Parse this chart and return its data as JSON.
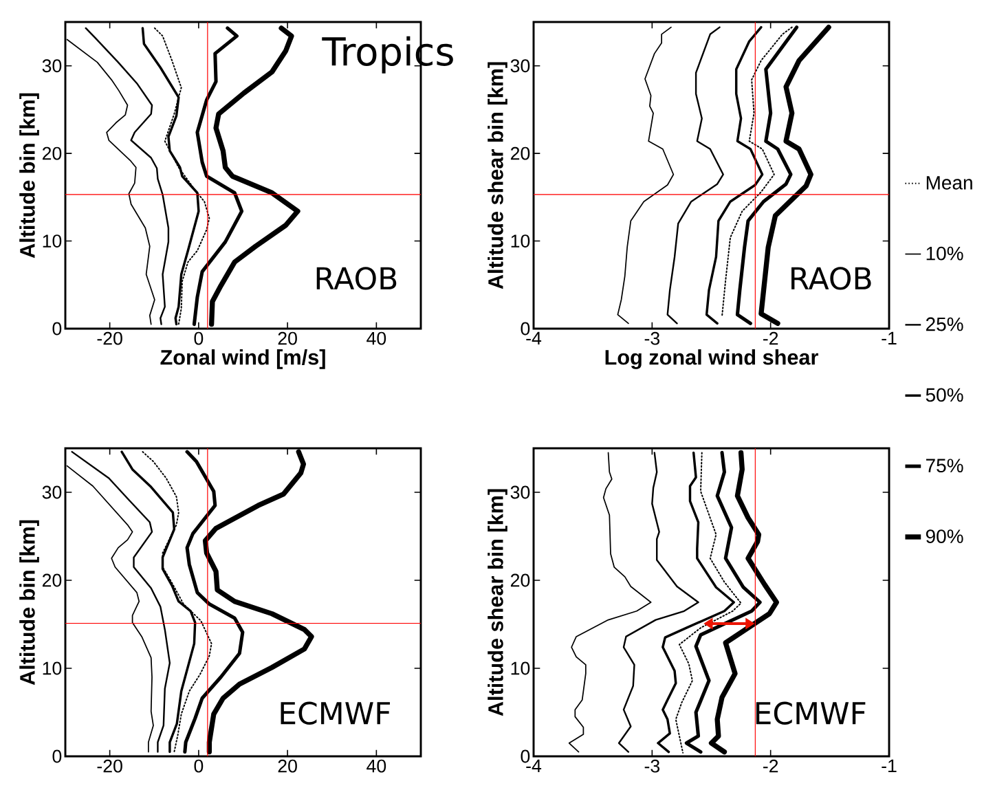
{
  "chart_data": [
    {
      "type": "line",
      "title": "Tropics",
      "xlabel": "Zonal wind [m/s]",
      "ylabel": "Altitude bin [km]",
      "annotations": [
        "RAOB"
      ],
      "xlim": [
        -30,
        50
      ],
      "ylim": [
        0,
        35
      ],
      "xticks": [
        -20,
        0,
        20,
        40
      ],
      "yticks": [
        0,
        10,
        20,
        30
      ],
      "ref_lines": [
        {
          "axis": "x",
          "value": 2,
          "color": "#ff0000"
        },
        {
          "axis": "y",
          "value": 15.3,
          "color": "#ff0000"
        }
      ],
      "series": [
        {
          "color": "#000000",
          "line_style": "dotted",
          "x": [
            -9.9,
            -8.1,
            -6.0,
            -3.9,
            -4.5,
            -5.5,
            -7.6,
            -4.5,
            -0.8,
            1.3,
            2.4,
            1.8,
            -0.3,
            -2.4,
            -3.7,
            -3.9,
            -4.5
          ],
          "values": [
            34.3,
            33.4,
            30.6,
            27.5,
            26.4,
            24.5,
            21.4,
            18.4,
            15.8,
            14.5,
            12.6,
            11.3,
            8.9,
            7.6,
            5.4,
            2.3,
            0.5
          ]
        },
        {
          "color": "#000000",
          "line_style": "solid",
          "x": [
            -29.6,
            -22.8,
            -19.6,
            -18.0,
            -16.0,
            -16.5,
            -18.6,
            -20.7,
            -20.2,
            -15.4,
            -14.1,
            -14.4,
            -15.7,
            -15.2,
            -12.0,
            -11.0,
            -11.8,
            -9.9,
            -11.0,
            -10.7
          ],
          "values": [
            33.0,
            30.4,
            28.4,
            27.2,
            25.5,
            24.4,
            23.5,
            22.4,
            21.5,
            19.2,
            18.4,
            16.6,
            15.4,
            14.2,
            11.5,
            9.4,
            6.2,
            3.3,
            1.5,
            0.5
          ]
        },
        {
          "color": "#000000",
          "line_style": "solid",
          "x": [
            -25.4,
            -23.3,
            -18.1,
            -13.9,
            -10.5,
            -10.7,
            -14.4,
            -15.2,
            -10.7,
            -9.4,
            -9.2,
            -8.1,
            -6.8,
            -6.8,
            -8.1,
            -7.6,
            -8.6,
            -8.4
          ],
          "values": [
            34.3,
            33.2,
            30.4,
            28.0,
            25.5,
            24.5,
            22.4,
            21.5,
            19.5,
            18.3,
            17.1,
            15.3,
            11.5,
            9.9,
            6.2,
            2.5,
            1.2,
            0.5
          ]
        },
        {
          "color": "#000000",
          "line_style": "solid",
          "x": [
            -12.6,
            -12.3,
            -8.6,
            -4.5,
            -5.0,
            -6.8,
            -6.5,
            -4.2,
            -3.7,
            -0.3,
            0,
            -2.4,
            -3.9,
            -4.5,
            -5.2,
            -5.0
          ],
          "values": [
            34.3,
            32.5,
            29.8,
            26.4,
            24.3,
            21.9,
            20.3,
            18.4,
            17.4,
            15.5,
            13.4,
            8.9,
            6.2,
            2.5,
            1.2,
            0.5
          ]
        },
        {
          "color": "#000000",
          "line_style": "solid",
          "x": [
            6.5,
            8.6,
            3.7,
            3.9,
            1.8,
            -0.3,
            0.8,
            1.8,
            8.1,
            9.7,
            6.0,
            0.8,
            -0.3,
            -1.0
          ],
          "values": [
            34.3,
            33.4,
            31.4,
            28.2,
            26.1,
            22.4,
            19.0,
            17.4,
            15.5,
            13.4,
            9.9,
            6.5,
            3.6,
            0.5
          ]
        },
        {
          "color": "#000000",
          "line_style": "solid",
          "x": [
            18.6,
            20.9,
            19.6,
            16.5,
            10.2,
            4.5,
            3.9,
            5.5,
            6.0,
            7.6,
            16.5,
            22.3,
            19.6,
            12.8,
            8.1,
            5.0,
            3.1,
            2.9
          ],
          "values": [
            34.3,
            33.4,
            31.7,
            29.3,
            26.9,
            24.5,
            22.9,
            20.3,
            18.4,
            17.4,
            15.5,
            13.4,
            11.8,
            9.4,
            7.6,
            4.9,
            3.1,
            0.5
          ]
        }
      ]
    },
    {
      "type": "line",
      "xlabel": "Log zonal wind shear",
      "ylabel": "Altitude shear bin [km]",
      "annotations": [
        "RAOB"
      ],
      "xlim": [
        -4,
        -1
      ],
      "ylim": [
        0,
        35
      ],
      "xticks": [
        -4,
        -3,
        -2,
        -1
      ],
      "yticks": [
        0,
        10,
        20,
        30
      ],
      "legend": "right",
      "ref_lines": [
        {
          "axis": "x",
          "value": -2.13,
          "color": "#ff0000"
        },
        {
          "axis": "y",
          "value": 15.3,
          "color": "#ff0000"
        }
      ],
      "series": [
        {
          "name": "Mean",
          "color": "#000000",
          "line_style": "dotted",
          "x": [
            -1.82,
            -1.9,
            -2.08,
            -2.16,
            -2.14,
            -2.18,
            -2.07,
            -1.97,
            -2.08,
            -2.24,
            -2.34,
            -2.38,
            -2.41
          ],
          "values": [
            34.4,
            33.6,
            30.6,
            28.4,
            24.6,
            21.4,
            20.5,
            17.6,
            15.6,
            13.4,
            10.4,
            5.5,
            1.4
          ]
        },
        {
          "name": "10%",
          "color": "#000000",
          "line_style": "solid",
          "x": [
            -2.84,
            -2.92,
            -2.92,
            -2.98,
            -3.06,
            -3.01,
            -3.02,
            -2.99,
            -3.03,
            -2.91,
            -2.82,
            -2.87,
            -3.07,
            -3.18,
            -3.21,
            -3.23,
            -3.26,
            -3.29,
            -3.2
          ],
          "values": [
            34.4,
            33.6,
            32.6,
            31.4,
            28.5,
            26.6,
            25.4,
            24.6,
            21.4,
            20.5,
            17.6,
            16.4,
            14.5,
            12.3,
            9.3,
            6.0,
            3.3,
            1.6,
            0.6
          ]
        },
        {
          "name": "25%",
          "color": "#000000",
          "line_style": "solid",
          "x": [
            -2.43,
            -2.51,
            -2.63,
            -2.63,
            -2.58,
            -2.62,
            -2.51,
            -2.4,
            -2.45,
            -2.67,
            -2.78,
            -2.81,
            -2.85,
            -2.87,
            -2.79
          ],
          "values": [
            34.4,
            33.6,
            29.2,
            26.8,
            24.0,
            21.4,
            20.5,
            17.6,
            16.5,
            14.5,
            12.0,
            8.2,
            4.4,
            1.6,
            0.6
          ]
        },
        {
          "name": "50%",
          "color": "#000000",
          "line_style": "solid",
          "x": [
            -2.08,
            -2.18,
            -2.29,
            -2.29,
            -2.25,
            -2.28,
            -2.17,
            -2.07,
            -2.13,
            -2.34,
            -2.44,
            -2.46,
            -2.52,
            -2.54,
            -2.45
          ],
          "values": [
            34.4,
            32.8,
            29.6,
            26.8,
            24.0,
            21.4,
            20.5,
            17.6,
            16.4,
            14.5,
            12.3,
            8.2,
            4.4,
            1.6,
            0.6
          ]
        },
        {
          "name": "75%",
          "color": "#000000",
          "line_style": "solid",
          "x": [
            -1.78,
            -2.04,
            -2.0,
            -2.04,
            -1.94,
            -1.83,
            -1.87,
            -2.06,
            -2.19,
            -2.22,
            -2.26,
            -2.28,
            -2.17
          ],
          "values": [
            34.4,
            29.6,
            24.6,
            21.4,
            20.5,
            17.6,
            16.5,
            14.5,
            12.3,
            9.3,
            4.4,
            1.6,
            0.6
          ]
        },
        {
          "name": "90%",
          "color": "#000000",
          "line_style": "solid",
          "x": [
            -1.51,
            -1.76,
            -1.87,
            -1.82,
            -1.87,
            -1.76,
            -1.66,
            -1.7,
            -1.8,
            -1.96,
            -2.02,
            -2.08,
            -1.94
          ],
          "values": [
            34.4,
            30.6,
            27.6,
            24.6,
            21.4,
            20.5,
            17.6,
            16.3,
            15.0,
            12.9,
            9.3,
            1.7,
            0.6
          ]
        }
      ]
    },
    {
      "type": "line",
      "ylabel": "Altitude bin [km]",
      "annotations": [
        "ECMWF"
      ],
      "xlim": [
        -30,
        50
      ],
      "ylim": [
        0,
        35
      ],
      "xticks": [
        -20,
        0,
        20,
        40
      ],
      "yticks": [
        0,
        10,
        20,
        30
      ],
      "ref_lines": [
        {
          "axis": "x",
          "value": 2,
          "color": "#ff0000"
        },
        {
          "axis": "y",
          "value": 15.1,
          "color": "#ff0000"
        }
      ],
      "series": [
        {
          "color": "#000000",
          "line_style": "dotted",
          "x": [
            -12.6,
            -10.2,
            -7.3,
            -5.0,
            -4.5,
            -5.0,
            -8.1,
            -8.1,
            -6.0,
            -3.4,
            0.5,
            2.9,
            2.4,
            0.3,
            -2.1,
            -3.9,
            -4.7,
            -5.5
          ],
          "values": [
            34.6,
            33.5,
            31.6,
            29.5,
            27.7,
            26.3,
            23.1,
            21.5,
            19.7,
            17.3,
            15.4,
            12.8,
            11.4,
            9.3,
            7.4,
            4.8,
            2.4,
            0.5
          ]
        },
        {
          "color": "#000000",
          "line_style": "solid",
          "x": [
            -29.6,
            -23.8,
            -16.0,
            -14.9,
            -16.0,
            -18.1,
            -19.6,
            -18.8,
            -13.9,
            -13.4,
            -14.9,
            -14.9,
            -12.8,
            -10.7,
            -10.5,
            -10.7,
            -10.2,
            -11.3,
            -11.3
          ],
          "values": [
            33.0,
            30.7,
            26.3,
            25.5,
            24.6,
            23.7,
            22.5,
            21.5,
            18.6,
            17.6,
            16.0,
            15.2,
            13.6,
            11.2,
            9.0,
            5.1,
            3.5,
            1.6,
            0.5
          ]
        },
        {
          "color": "#000000",
          "line_style": "solid",
          "x": [
            -28.5,
            -20.2,
            -16.0,
            -11.0,
            -10.5,
            -14.6,
            -14.6,
            -10.7,
            -8.6,
            -7.6,
            -6.5,
            -7.6,
            -7.9,
            -9.2,
            -9.2
          ],
          "values": [
            34.6,
            31.6,
            29.3,
            26.6,
            25.5,
            22.6,
            21.5,
            19.1,
            17.0,
            14.4,
            10.6,
            7.7,
            3.5,
            1.6,
            0.5
          ]
        },
        {
          "color": "#000000",
          "line_style": "solid",
          "x": [
            -17.3,
            -14.9,
            -10.7,
            -5.8,
            -5.5,
            -8.1,
            -8.1,
            -6.0,
            -4.5,
            -1.8,
            -0.8,
            -1.0,
            -3.9,
            -4.9,
            -6.5,
            -6.5
          ],
          "values": [
            34.6,
            32.6,
            30.6,
            27.7,
            25.8,
            22.6,
            21.3,
            19.4,
            17.6,
            16.5,
            15.2,
            12.8,
            7.4,
            3.7,
            1.6,
            0.5
          ]
        },
        {
          "color": "#000000",
          "line_style": "solid",
          "x": [
            -2.6,
            -0.5,
            3.4,
            3.7,
            -1.3,
            -2.6,
            -2.1,
            -0.3,
            2.4,
            8.1,
            9.9,
            9.2,
            5.0,
            0.8,
            -0.8,
            -2.9,
            -3.1
          ],
          "values": [
            34.6,
            33.5,
            30.1,
            28.5,
            25.3,
            23.7,
            21.8,
            18.6,
            17.3,
            15.7,
            14.1,
            11.7,
            9.0,
            6.6,
            4.3,
            1.6,
            0.5
          ]
        },
        {
          "color": "#000000",
          "line_style": "solid",
          "x": [
            22.5,
            23.6,
            23.0,
            19.1,
            13.4,
            3.9,
            1.5,
            1.8,
            3.9,
            4.2,
            8.1,
            16.5,
            23.8,
            25.4,
            23.8,
            16.5,
            9.2,
            5.5,
            3.4,
            2.4,
            2.4
          ],
          "values": [
            34.6,
            33.2,
            32.2,
            29.8,
            28.5,
            25.9,
            24.5,
            23.1,
            21.0,
            18.9,
            17.6,
            16.2,
            14.4,
            13.6,
            12.2,
            10.1,
            8.2,
            6.6,
            4.8,
            1.6,
            0.5
          ]
        }
      ]
    },
    {
      "type": "line",
      "ylabel": "Altitude shear bin [km]",
      "annotations": [
        "ECMWF"
      ],
      "xlim": [
        -4,
        -1
      ],
      "ylim": [
        0,
        35
      ],
      "xticks": [
        -4,
        -3,
        -2,
        -1
      ],
      "yticks": [
        0,
        10,
        20,
        30
      ],
      "ref_lines": [
        {
          "axis": "x",
          "value": -2.13,
          "color": "#ff0000"
        }
      ],
      "series": [
        {
          "color": "#000000",
          "line_style": "dotted",
          "x": [
            -2.58,
            -2.59,
            -2.46,
            -2.51,
            -2.39,
            -2.25,
            -2.32,
            -2.59,
            -2.77,
            -2.69,
            -2.66,
            -2.75,
            -2.8,
            -2.74
          ],
          "values": [
            34.5,
            30.1,
            25.2,
            22.5,
            19.8,
            17.4,
            16.5,
            14.6,
            12.7,
            10.5,
            8.6,
            6.1,
            4.2,
            0.4
          ]
        },
        {
          "color": "#000000",
          "line_style": "solid",
          "x": [
            -3.37,
            -3.36,
            -3.34,
            -3.39,
            -3.41,
            -3.36,
            -3.35,
            -3.32,
            -3.23,
            -3.18,
            -3.01,
            -3.13,
            -3.37,
            -3.64,
            -3.68,
            -3.64,
            -3.56,
            -3.56,
            -3.59,
            -3.65,
            -3.65,
            -3.58,
            -3.58,
            -3.7,
            -3.62
          ],
          "values": [
            34.5,
            32.3,
            31.5,
            30.4,
            29.4,
            27.4,
            23.0,
            21.5,
            20.4,
            19.3,
            17.5,
            16.5,
            15.5,
            13.6,
            12.4,
            11.3,
            10.4,
            9.4,
            6.4,
            5.3,
            4.5,
            3.3,
            2.5,
            1.5,
            0.5
          ]
        },
        {
          "color": "#000000",
          "line_style": "solid",
          "x": [
            -2.98,
            -2.96,
            -2.99,
            -3.0,
            -2.94,
            -2.96,
            -2.96,
            -2.79,
            -2.61,
            -2.73,
            -2.97,
            -3.22,
            -3.24,
            -3.15,
            -3.16,
            -3.24,
            -3.18,
            -3.28,
            -3.2
          ],
          "values": [
            34.5,
            32.3,
            30.5,
            28.7,
            25.5,
            24.7,
            22.3,
            19.3,
            17.5,
            16.5,
            15.5,
            13.6,
            12.4,
            10.4,
            8.0,
            5.3,
            3.4,
            1.5,
            0.5
          ]
        },
        {
          "color": "#000000",
          "line_style": "solid",
          "x": [
            -2.65,
            -2.63,
            -2.68,
            -2.68,
            -2.61,
            -2.62,
            -2.62,
            -2.46,
            -2.31,
            -2.39,
            -2.71,
            -2.89,
            -2.91,
            -2.81,
            -2.8,
            -2.87,
            -2.91,
            -2.87,
            -2.85,
            -2.95,
            -2.86
          ],
          "values": [
            34.5,
            31.7,
            30.7,
            29.0,
            26.6,
            23.6,
            22.5,
            19.2,
            17.5,
            16.5,
            14.6,
            13.5,
            12.4,
            9.7,
            8.3,
            6.4,
            5.3,
            4.2,
            2.6,
            1.5,
            0.5
          ]
        },
        {
          "color": "#000000",
          "line_style": "solid",
          "x": [
            -2.41,
            -2.39,
            -2.45,
            -2.33,
            -2.38,
            -2.23,
            -2.09,
            -2.16,
            -2.59,
            -2.63,
            -2.52,
            -2.63,
            -2.61,
            -2.71,
            -2.59
          ],
          "values": [
            34.5,
            32.3,
            29.6,
            26.0,
            22.5,
            19.2,
            17.5,
            16.5,
            13.8,
            12.5,
            8.6,
            5.0,
            2.3,
            1.5,
            0.5
          ]
        },
        {
          "color": "#000000",
          "line_style": "solid",
          "x": [
            -2.25,
            -2.24,
            -2.28,
            -2.19,
            -2.1,
            -2.11,
            -2.19,
            -2.05,
            -1.95,
            -2.01,
            -2.38,
            -2.3,
            -2.41,
            -2.45,
            -2.44,
            -2.5,
            -2.39
          ],
          "values": [
            34.5,
            32.6,
            29.6,
            27.1,
            25.2,
            24.4,
            22.5,
            19.5,
            17.5,
            16.2,
            12.9,
            9.4,
            6.7,
            4.2,
            2.3,
            1.5,
            0.5
          ]
        }
      ]
    }
  ]
}
